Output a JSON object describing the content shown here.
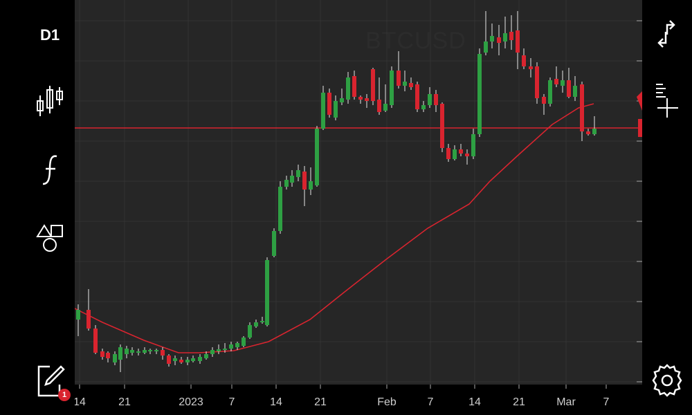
{
  "toolbar": {
    "timeframe": "D1",
    "notifications_count": "1"
  },
  "chart": {
    "symbol": "BTCUSD",
    "colors": {
      "up": "#2ea043",
      "down": "#d9242f",
      "ma": "#d9242f",
      "price_line": "#d9242f",
      "background": "#262626",
      "grid": "#333333"
    },
    "x_labels": [
      "14",
      "21",
      "2023",
      "7",
      "14",
      "21",
      "Feb",
      "7",
      "14",
      "21",
      "Mar",
      "7"
    ]
  },
  "icons": {
    "left": [
      "candlestick-icon",
      "indicator-function-icon",
      "shapes-icon",
      "edit-icon"
    ],
    "right": [
      "swap-icon",
      "crosshair-icon",
      "settings-icon"
    ]
  }
}
